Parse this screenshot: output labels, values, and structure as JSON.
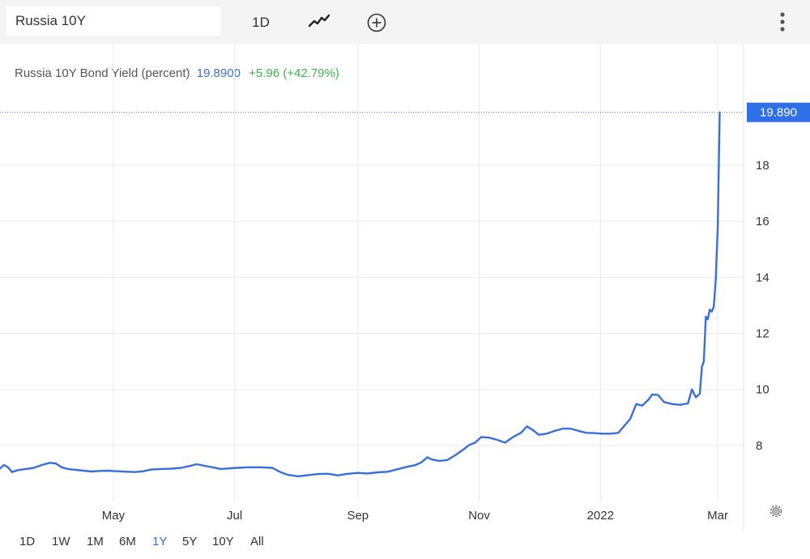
{
  "toolbar": {
    "symbol_value": "Russia 10Y",
    "interval_label": "1D",
    "chart_type_icon": "line-chart-icon",
    "compare_icon": "plus-circle-icon",
    "menu_icon": "more-vertical-icon"
  },
  "header": {
    "name": "Russia 10Y Bond Yield (percent)",
    "value": "19.8900",
    "change": "+5.96 (+42.79%)"
  },
  "price_badge": "19.890",
  "ranges": [
    "1D",
    "1W",
    "1M",
    "6M",
    "1Y",
    "5Y",
    "10Y",
    "All"
  ],
  "active_range": "1Y",
  "colors": {
    "line": "#3a6fd8",
    "badge": "#2f6fe8",
    "positive": "#3bb54a",
    "grid": "#e8e8e8"
  },
  "chart_data": {
    "type": "line",
    "title": "Russia 10Y Bond Yield (percent)",
    "xlabel": "",
    "ylabel": "",
    "x_tick_labels": [
      "May",
      "Jul",
      "Sep",
      "Nov",
      "2022",
      "Mar"
    ],
    "x_tick_dates": [
      "2021-05-01",
      "2021-07-01",
      "2021-09-01",
      "2021-11-01",
      "2022-01-01",
      "2022-03-01"
    ],
    "y_ticks": [
      8,
      10,
      12,
      14,
      16,
      18
    ],
    "xlim": [
      "2021-03-05",
      "2022-03-14"
    ],
    "ylim": [
      6.0,
      20.2
    ],
    "grid": true,
    "last_value": 19.89,
    "series": [
      {
        "points": [
          [
            "2021-03-05",
            7.18
          ],
          [
            "2021-03-07",
            7.3
          ],
          [
            "2021-03-09",
            7.22
          ],
          [
            "2021-03-11",
            7.05
          ],
          [
            "2021-03-14",
            7.12
          ],
          [
            "2021-03-18",
            7.16
          ],
          [
            "2021-03-22",
            7.2
          ],
          [
            "2021-03-26",
            7.3
          ],
          [
            "2021-03-30",
            7.38
          ],
          [
            "2021-04-02",
            7.36
          ],
          [
            "2021-04-05",
            7.22
          ],
          [
            "2021-04-08",
            7.16
          ],
          [
            "2021-04-12",
            7.13
          ],
          [
            "2021-04-16",
            7.1
          ],
          [
            "2021-04-20",
            7.07
          ],
          [
            "2021-04-24",
            7.09
          ],
          [
            "2021-04-28",
            7.1
          ],
          [
            "2021-05-03",
            7.08
          ],
          [
            "2021-05-08",
            7.06
          ],
          [
            "2021-05-12",
            7.05
          ],
          [
            "2021-05-16",
            7.08
          ],
          [
            "2021-05-20",
            7.14
          ],
          [
            "2021-05-25",
            7.16
          ],
          [
            "2021-05-30",
            7.17
          ],
          [
            "2021-06-04",
            7.2
          ],
          [
            "2021-06-08",
            7.26
          ],
          [
            "2021-06-12",
            7.33
          ],
          [
            "2021-06-16",
            7.27
          ],
          [
            "2021-06-20",
            7.22
          ],
          [
            "2021-06-24",
            7.16
          ],
          [
            "2021-06-28",
            7.18
          ],
          [
            "2021-07-02",
            7.2
          ],
          [
            "2021-07-08",
            7.22
          ],
          [
            "2021-07-14",
            7.22
          ],
          [
            "2021-07-20",
            7.2
          ],
          [
            "2021-07-24",
            7.05
          ],
          [
            "2021-07-28",
            6.95
          ],
          [
            "2021-08-02",
            6.9
          ],
          [
            "2021-08-07",
            6.94
          ],
          [
            "2021-08-12",
            6.98
          ],
          [
            "2021-08-17",
            6.99
          ],
          [
            "2021-08-22",
            6.93
          ],
          [
            "2021-08-26",
            6.98
          ],
          [
            "2021-09-01",
            7.02
          ],
          [
            "2021-09-06",
            7.0
          ],
          [
            "2021-09-11",
            7.04
          ],
          [
            "2021-09-16",
            7.06
          ],
          [
            "2021-09-21",
            7.15
          ],
          [
            "2021-09-26",
            7.24
          ],
          [
            "2021-09-30",
            7.3
          ],
          [
            "2021-10-03",
            7.4
          ],
          [
            "2021-10-06",
            7.58
          ],
          [
            "2021-10-08",
            7.5
          ],
          [
            "2021-10-12",
            7.45
          ],
          [
            "2021-10-16",
            7.48
          ],
          [
            "2021-10-20",
            7.65
          ],
          [
            "2021-10-24",
            7.85
          ],
          [
            "2021-10-27",
            8.02
          ],
          [
            "2021-10-30",
            8.1
          ],
          [
            "2021-11-02",
            8.3
          ],
          [
            "2021-11-06",
            8.28
          ],
          [
            "2021-11-10",
            8.2
          ],
          [
            "2021-11-14",
            8.1
          ],
          [
            "2021-11-18",
            8.3
          ],
          [
            "2021-11-22",
            8.45
          ],
          [
            "2021-11-25",
            8.68
          ],
          [
            "2021-11-28",
            8.55
          ],
          [
            "2021-12-01",
            8.38
          ],
          [
            "2021-12-05",
            8.42
          ],
          [
            "2021-12-09",
            8.52
          ],
          [
            "2021-12-13",
            8.6
          ],
          [
            "2021-12-17",
            8.6
          ],
          [
            "2021-12-21",
            8.52
          ],
          [
            "2021-12-25",
            8.45
          ],
          [
            "2021-12-29",
            8.44
          ],
          [
            "2022-01-02",
            8.42
          ],
          [
            "2022-01-06",
            8.42
          ],
          [
            "2022-01-10",
            8.45
          ],
          [
            "2022-01-13",
            8.7
          ],
          [
            "2022-01-16",
            8.95
          ],
          [
            "2022-01-19",
            9.48
          ],
          [
            "2022-01-22",
            9.42
          ],
          [
            "2022-01-25",
            9.62
          ],
          [
            "2022-01-27",
            9.82
          ],
          [
            "2022-01-30",
            9.8
          ],
          [
            "2022-02-02",
            9.55
          ],
          [
            "2022-02-06",
            9.48
          ],
          [
            "2022-02-10",
            9.45
          ],
          [
            "2022-02-14",
            9.5
          ],
          [
            "2022-02-16",
            10.0
          ],
          [
            "2022-02-18",
            9.72
          ],
          [
            "2022-02-20",
            9.85
          ],
          [
            "2022-02-21",
            10.8
          ],
          [
            "2022-02-22",
            11.0
          ],
          [
            "2022-02-23",
            12.6
          ],
          [
            "2022-02-24",
            12.5
          ],
          [
            "2022-02-25",
            12.85
          ],
          [
            "2022-02-26",
            12.78
          ],
          [
            "2022-02-27",
            12.95
          ],
          [
            "2022-02-28",
            13.9
          ],
          [
            "2022-03-01",
            15.8
          ],
          [
            "2022-03-02",
            19.89
          ]
        ]
      }
    ]
  }
}
